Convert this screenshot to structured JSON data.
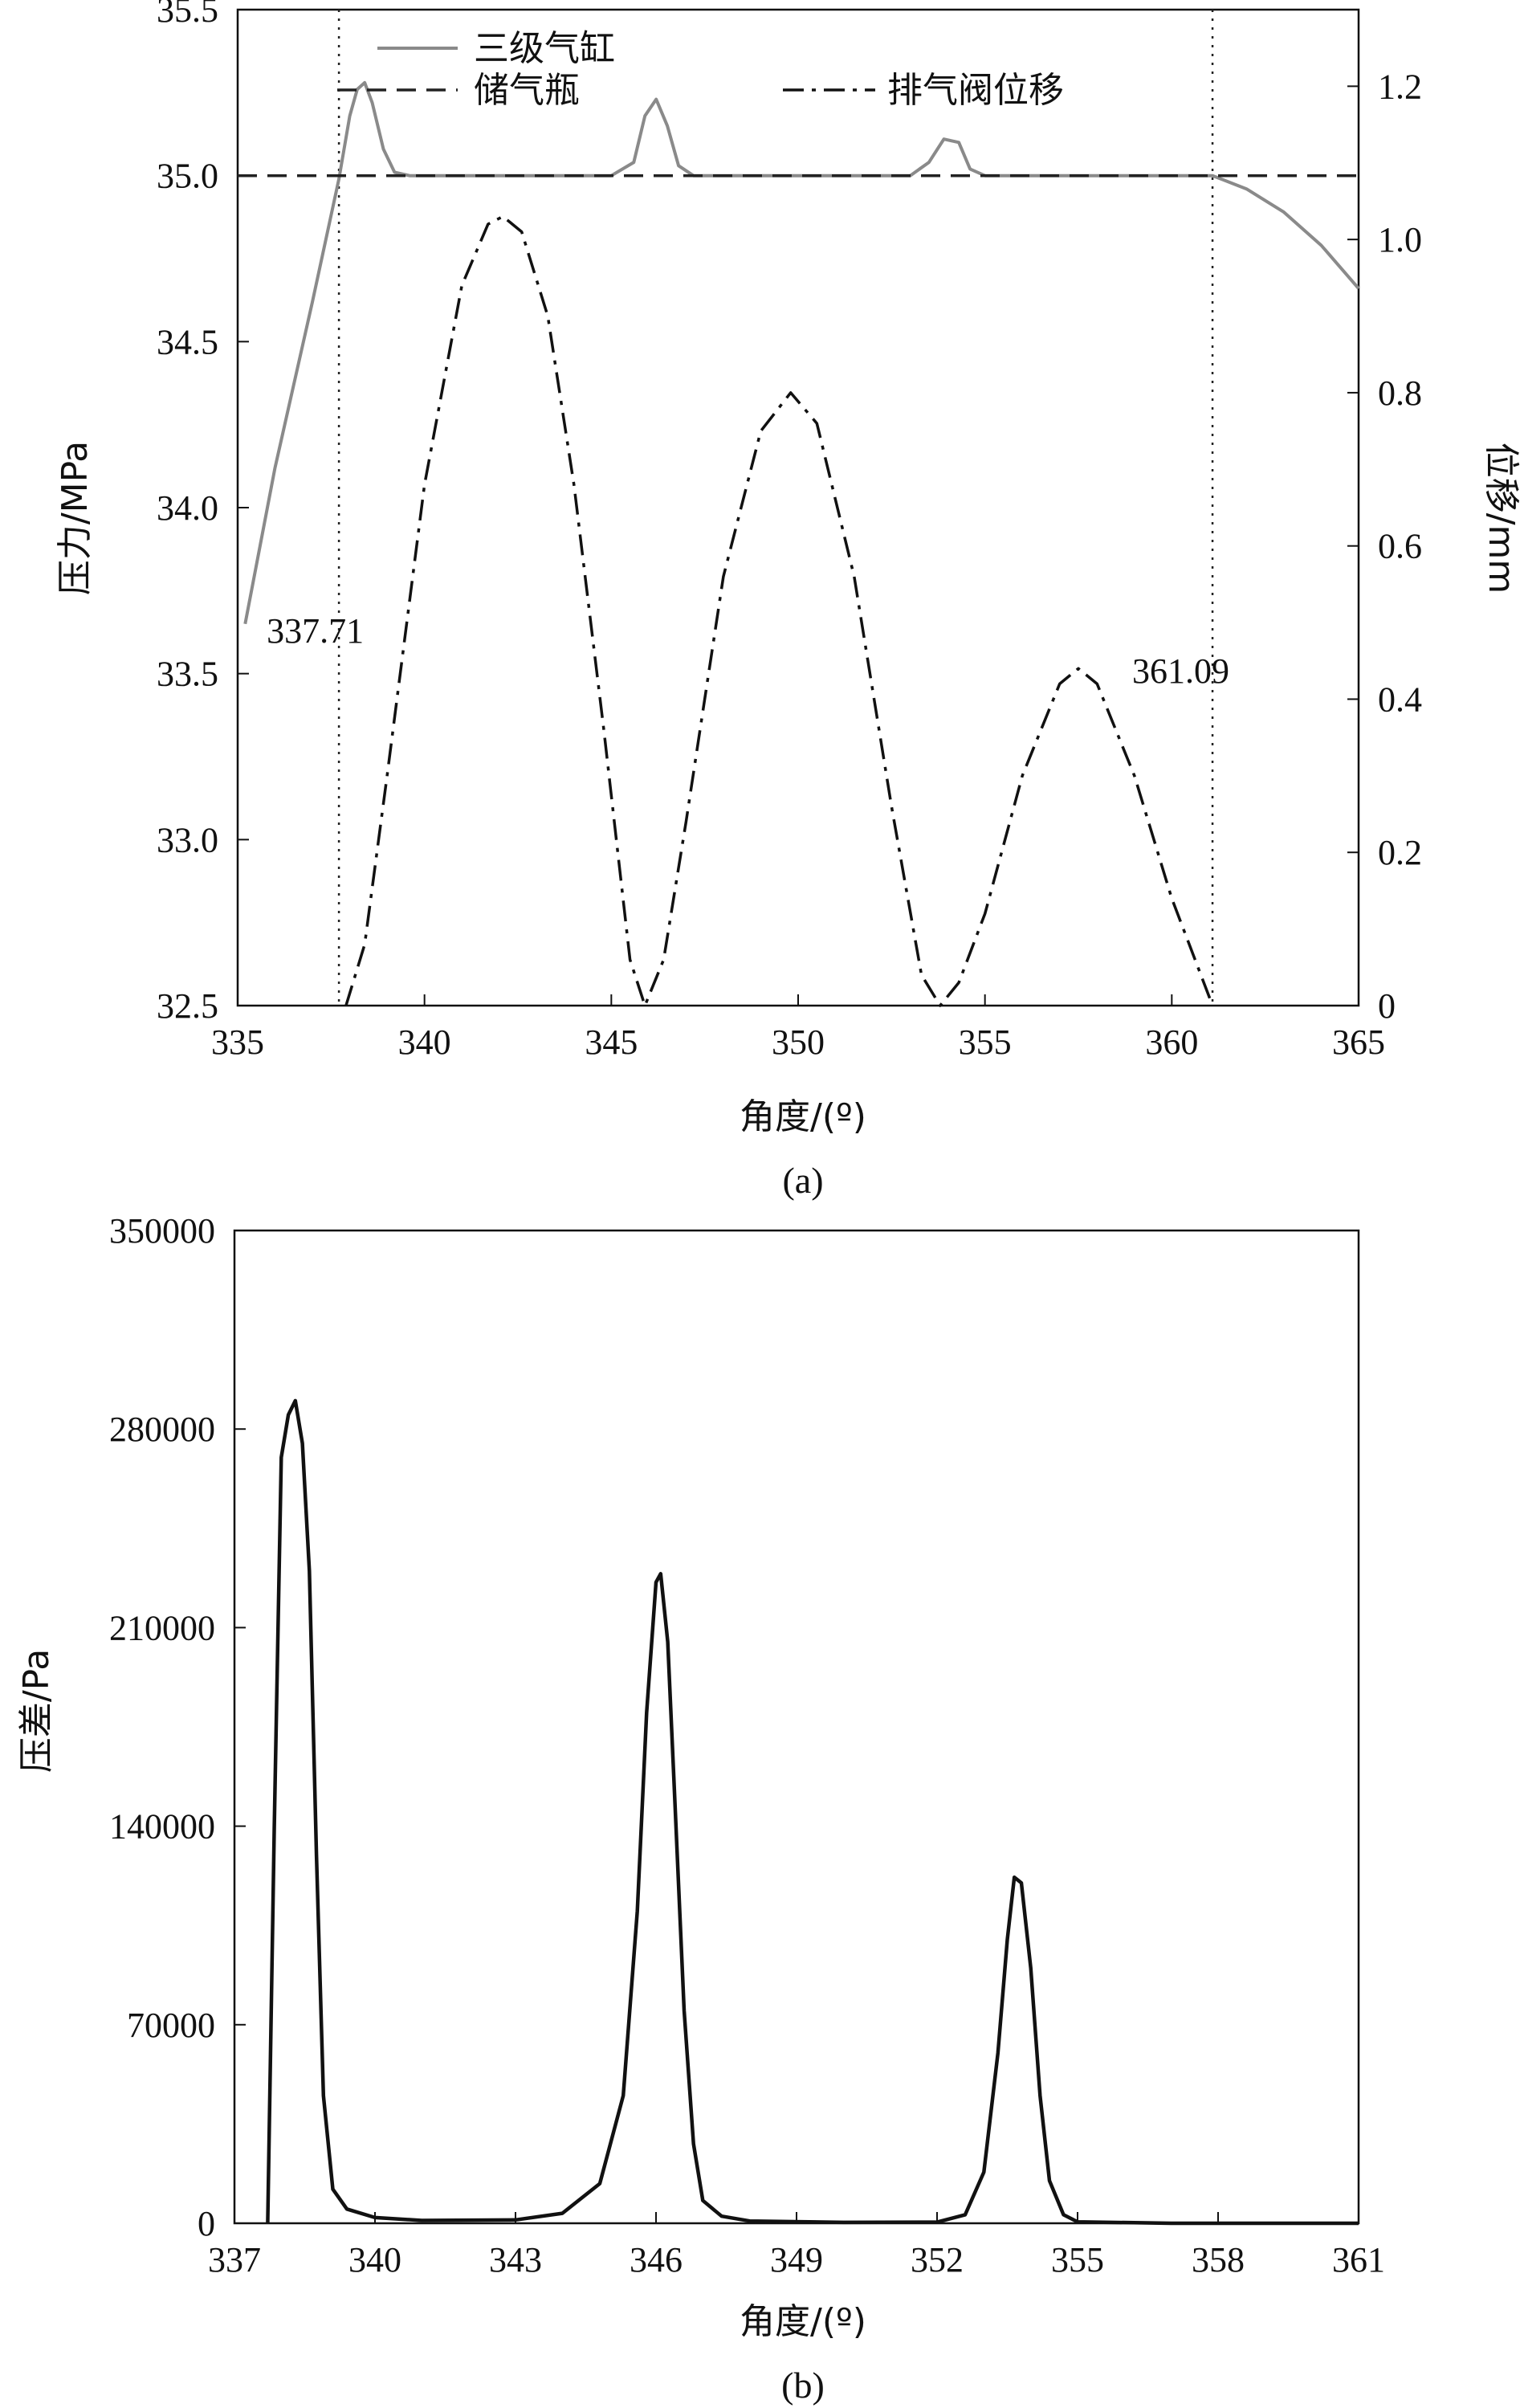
{
  "chart_data": [
    {
      "type": "line",
      "caption": "(a)",
      "xlabel": "角度/(º)",
      "ylabel": "压力/MPa",
      "y2label": "位移/mm",
      "xlim": [
        335,
        365
      ],
      "ylim": [
        32.5,
        35.5
      ],
      "y2lim": [
        0,
        1.3
      ],
      "xticks": [
        335,
        340,
        345,
        350,
        355,
        360,
        365
      ],
      "yticks": [
        32.5,
        33.0,
        33.5,
        34.0,
        34.5,
        35.0,
        35.5
      ],
      "y2ticks": [
        0,
        0.2,
        0.4,
        0.6,
        0.8,
        1.0,
        1.2
      ],
      "xtick_labels": [
        "335",
        "340",
        "345",
        "350",
        "355",
        "360",
        "365"
      ],
      "ytick_labels": [
        "32.5",
        "33.0",
        "33.5",
        "34.0",
        "34.5",
        "35.0",
        "35.5"
      ],
      "y2tick_labels": [
        "0",
        "0.2",
        "0.4",
        "0.6",
        "0.8",
        "1.0",
        "1.2"
      ],
      "annotations": [
        {
          "text": "337.71",
          "x": 337.71
        },
        {
          "text": "361.09",
          "x": 361.09
        }
      ],
      "vlines": [
        337.71,
        361.09
      ],
      "legend_position": "top-center",
      "series": [
        {
          "name": "三级气缸",
          "axis": "left",
          "style": "solid",
          "color": "#8a8a8a",
          "x": [
            335.2,
            336.0,
            337.0,
            337.71,
            338.0,
            338.2,
            338.4,
            338.6,
            338.9,
            339.2,
            339.6,
            340.0,
            345.0,
            345.6,
            345.9,
            346.2,
            346.5,
            346.8,
            347.2,
            353.0,
            353.5,
            353.9,
            354.3,
            354.6,
            355.0,
            361.09,
            362.0,
            363.0,
            364.0,
            365.0
          ],
          "y": [
            33.65,
            34.12,
            34.62,
            34.99,
            35.18,
            35.26,
            35.28,
            35.22,
            35.08,
            35.01,
            35.0,
            35.0,
            35.0,
            35.04,
            35.18,
            35.23,
            35.15,
            35.03,
            35.0,
            35.0,
            35.04,
            35.11,
            35.1,
            35.02,
            35.0,
            35.0,
            34.96,
            34.89,
            34.79,
            34.66
          ]
        },
        {
          "name": "储气瓶",
          "axis": "left",
          "style": "dashed",
          "color": "#222222",
          "x": [
            335,
            365
          ],
          "y": [
            35.0,
            35.0
          ]
        },
        {
          "name": "排气阀位移",
          "axis": "right",
          "style": "dashdot",
          "color": "#111111",
          "x": [
            337.9,
            338.4,
            339.0,
            340.0,
            341.0,
            341.7,
            342.1,
            342.6,
            343.3,
            344.0,
            344.8,
            345.5,
            345.9,
            346.4,
            347.0,
            348.0,
            349.0,
            349.8,
            350.5,
            351.5,
            352.5,
            353.3,
            353.8,
            354.3,
            355.0,
            356.0,
            357.0,
            357.5,
            358.0,
            359.0,
            360.0,
            361.09
          ],
          "y": [
            0.0,
            0.08,
            0.3,
            0.68,
            0.94,
            1.02,
            1.03,
            1.01,
            0.9,
            0.68,
            0.36,
            0.06,
            0.0,
            0.06,
            0.24,
            0.56,
            0.75,
            0.8,
            0.76,
            0.56,
            0.26,
            0.04,
            0.0,
            0.03,
            0.12,
            0.3,
            0.42,
            0.44,
            0.42,
            0.3,
            0.14,
            0.0
          ]
        }
      ]
    },
    {
      "type": "line",
      "caption": "(b)",
      "xlabel": "角度/(º)",
      "ylabel": "压差/Pa",
      "xlim": [
        337,
        361
      ],
      "ylim": [
        0,
        350000
      ],
      "xticks": [
        337,
        340,
        343,
        346,
        349,
        352,
        355,
        358,
        361
      ],
      "yticks": [
        0,
        70000,
        140000,
        210000,
        280000,
        350000
      ],
      "xtick_labels": [
        "337",
        "340",
        "343",
        "346",
        "349",
        "352",
        "355",
        "358",
        "361"
      ],
      "ytick_labels": [
        "0",
        "70000",
        "140000",
        "210000",
        "280000",
        "350000"
      ],
      "series": [
        {
          "style": "solid",
          "color": "#111111",
          "x": [
            337.71,
            337.85,
            338.0,
            338.15,
            338.3,
            338.45,
            338.6,
            338.75,
            338.9,
            339.1,
            339.4,
            340.0,
            341.0,
            343.0,
            344.0,
            344.8,
            345.3,
            345.6,
            345.8,
            346.0,
            346.1,
            346.25,
            346.4,
            346.6,
            346.8,
            347.0,
            347.4,
            348.0,
            350.0,
            352.0,
            352.6,
            353.0,
            353.3,
            353.5,
            353.65,
            353.8,
            354.0,
            354.2,
            354.4,
            354.7,
            355.0,
            357.0,
            361.0
          ],
          "y": [
            0,
            140000,
            270000,
            285000,
            290000,
            275000,
            230000,
            130000,
            45000,
            12000,
            5000,
            2000,
            1000,
            1200,
            3500,
            14000,
            45000,
            110000,
            180000,
            226000,
            229000,
            205000,
            150000,
            75000,
            28000,
            8000,
            2500,
            800,
            300,
            400,
            3000,
            18000,
            60000,
            100000,
            122000,
            120000,
            90000,
            45000,
            15000,
            3000,
            500,
            0,
            0
          ]
        }
      ]
    }
  ]
}
